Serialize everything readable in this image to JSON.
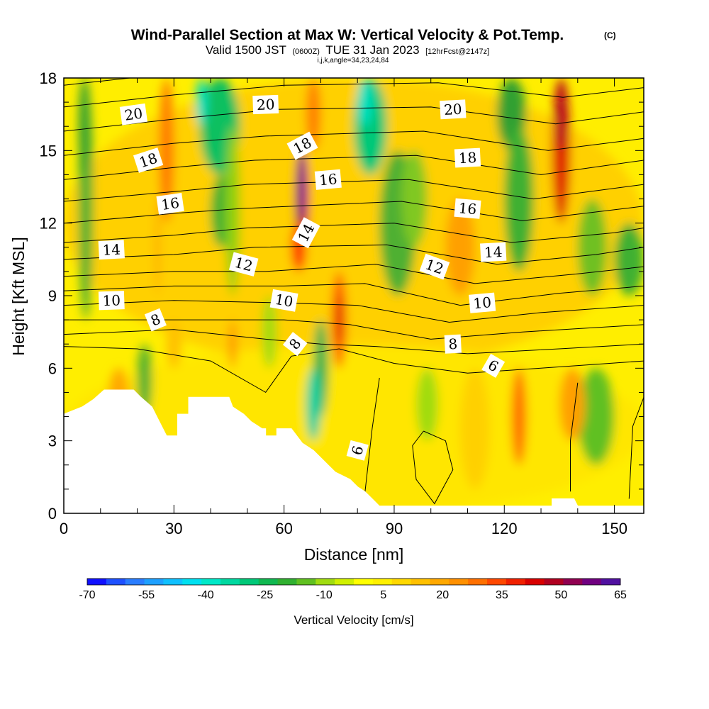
{
  "title": {
    "main": "Wind-Parallel Section at Max W: Vertical Velocity & Pot.Temp.",
    "copyright": "(C)",
    "valid_prefix": "Valid 1500 JST",
    "valid_utc": "(0600Z)",
    "valid_date": "TUE 31 Jan 2023",
    "forecast": "[12hrFcst@2147z]",
    "indices": "i,j,k,angle=34,23,24,84"
  },
  "chart_data": {
    "type": "heatmap",
    "xlabel": "Distance [nm]",
    "ylabel": "Height [Kft MSL]",
    "xlim": [
      0,
      158
    ],
    "ylim": [
      0,
      18
    ],
    "x_ticks": [
      0,
      30,
      60,
      90,
      120,
      150
    ],
    "y_ticks": [
      0,
      3,
      6,
      9,
      12,
      15,
      18
    ],
    "colorbar": {
      "title": "Vertical Velocity [cm/s]",
      "ticks": [
        -70,
        -55,
        -40,
        -25,
        -10,
        5,
        20,
        35,
        50,
        65
      ],
      "levels": [
        -70,
        -65,
        -60,
        -55,
        -50,
        -45,
        -40,
        -35,
        -30,
        -25,
        -20,
        -15,
        -10,
        -5,
        0,
        5,
        10,
        15,
        20,
        25,
        30,
        35,
        40,
        45,
        50,
        55,
        60,
        65
      ],
      "colors": [
        "#1010ff",
        "#1e50ff",
        "#2a7dff",
        "#1ea0ff",
        "#10c0ff",
        "#00e0f0",
        "#00e8c8",
        "#00d8a0",
        "#00c878",
        "#10b850",
        "#30b030",
        "#60c020",
        "#a0dc10",
        "#d0f000",
        "#ffff00",
        "#fff000",
        "#ffd800",
        "#ffc000",
        "#ffa800",
        "#ff9000",
        "#ff7000",
        "#ff4800",
        "#f02000",
        "#d80000",
        "#b00020",
        "#900050",
        "#700080",
        "#5010a0"
      ]
    },
    "theta_contour_labels": [
      "20",
      "20",
      "20",
      "18",
      "18",
      "18",
      "16",
      "16",
      "16",
      "14",
      "14",
      "14",
      "12",
      "12",
      "10",
      "10",
      "10",
      "8",
      "8",
      "8",
      "6",
      "6"
    ],
    "terrain_kft": [
      [
        0,
        4.1
      ],
      [
        5,
        4.4
      ],
      [
        8,
        4.7
      ],
      [
        11,
        5.1
      ],
      [
        19,
        5.1
      ],
      [
        21,
        4.8
      ],
      [
        24,
        4.4
      ],
      [
        26,
        3.8
      ],
      [
        28,
        3.2
      ],
      [
        31,
        3.2
      ],
      [
        31,
        4.1
      ],
      [
        34,
        4.1
      ],
      [
        34,
        4.8
      ],
      [
        45,
        4.8
      ],
      [
        46,
        4.4
      ],
      [
        49,
        4.1
      ],
      [
        51,
        3.8
      ],
      [
        54,
        3.5
      ],
      [
        55,
        3.5
      ],
      [
        55,
        3.2
      ],
      [
        58,
        3.2
      ],
      [
        58,
        3.5
      ],
      [
        62,
        3.5
      ],
      [
        65,
        2.9
      ],
      [
        68,
        2.6
      ],
      [
        70,
        2.3
      ],
      [
        72,
        2.0
      ],
      [
        74,
        1.7
      ],
      [
        78,
        1.4
      ],
      [
        80,
        1.1
      ],
      [
        82,
        0.9
      ],
      [
        84,
        0.6
      ],
      [
        86,
        0.3
      ],
      [
        133,
        0.3
      ],
      [
        133,
        0.6
      ],
      [
        139,
        0.6
      ],
      [
        140,
        0.3
      ],
      [
        158,
        0.3
      ]
    ]
  }
}
